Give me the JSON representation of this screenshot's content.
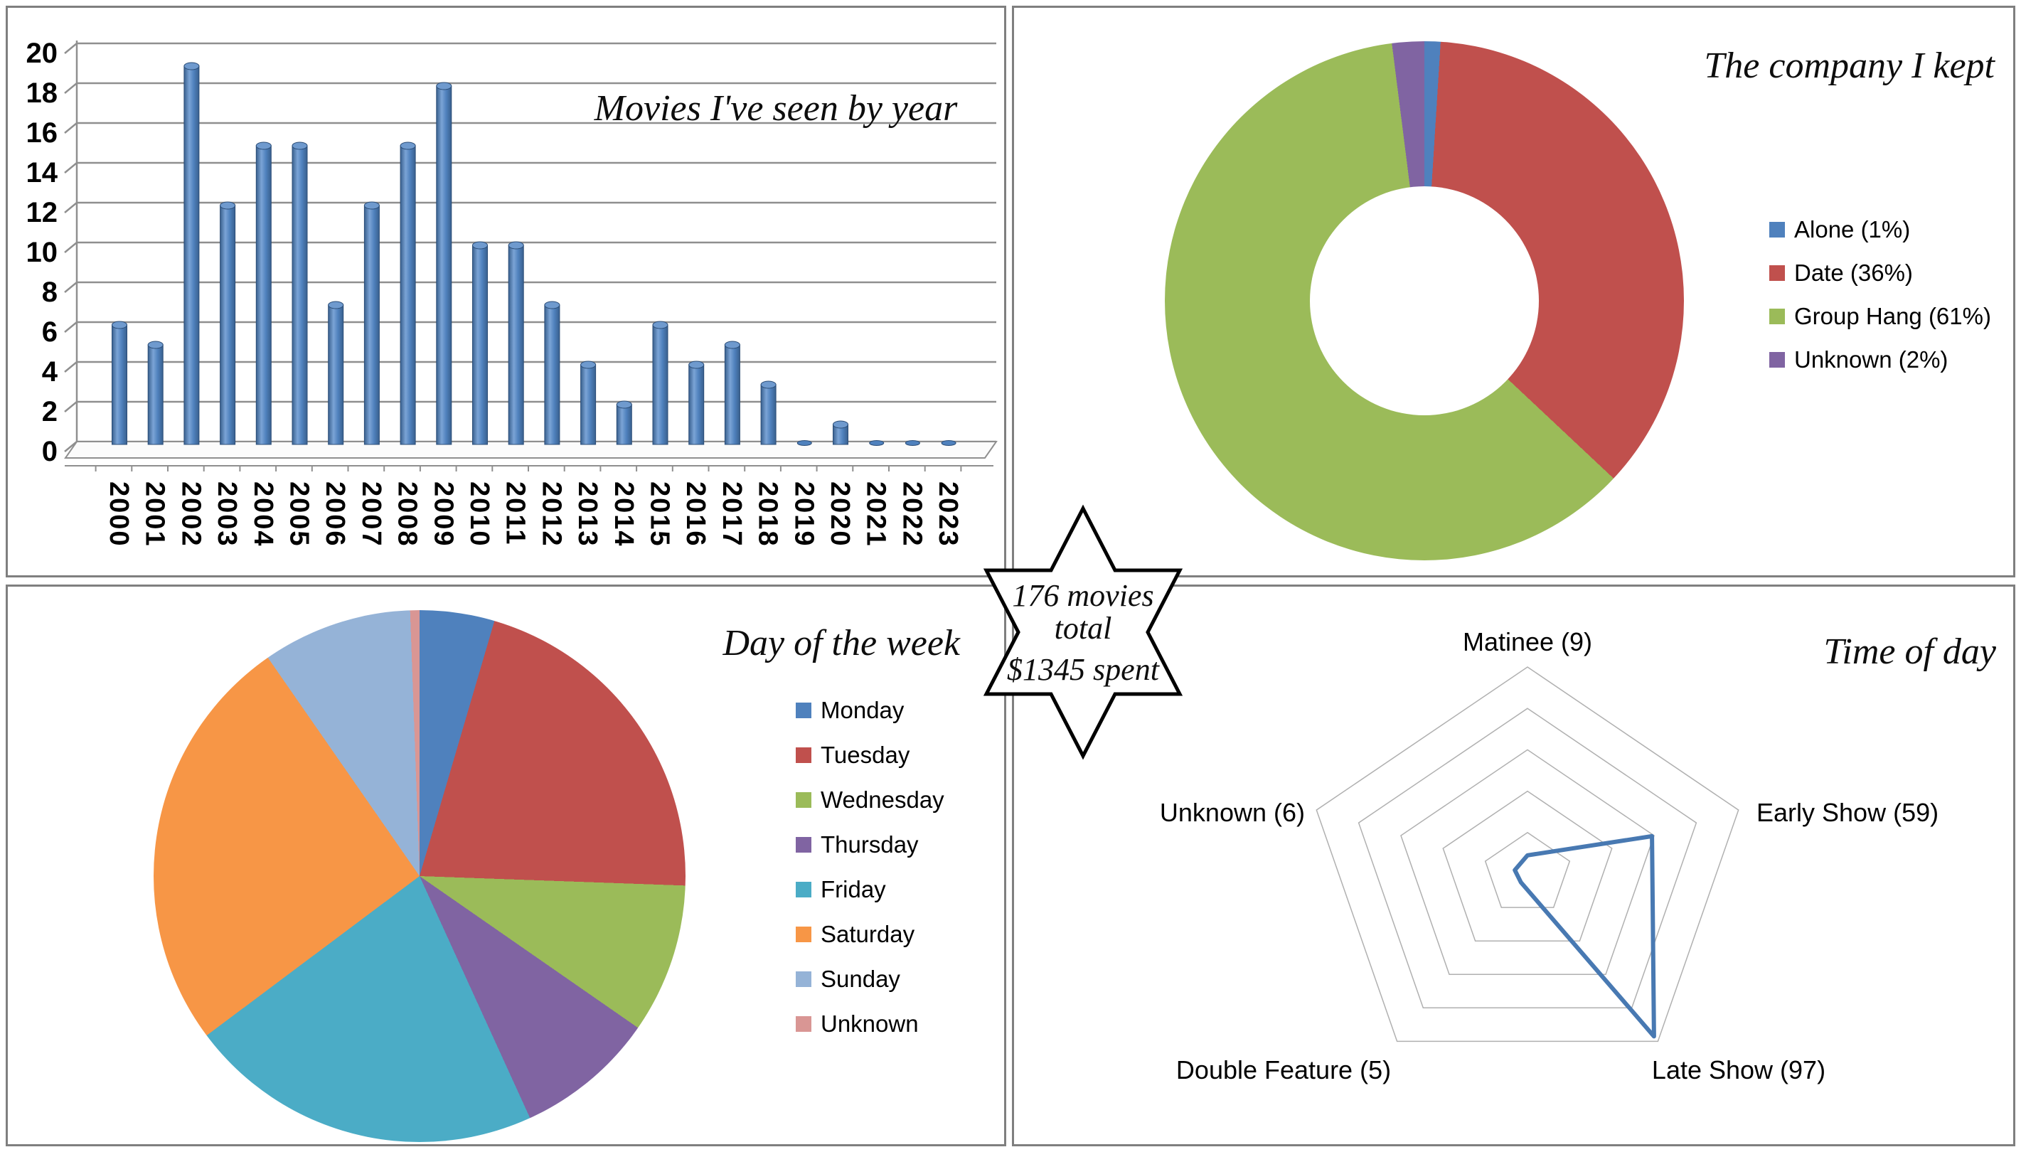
{
  "star": {
    "line1": "176 movies",
    "line2": "total",
    "line3": "$1345 spent"
  },
  "palette": {
    "blue": "#4F81BD",
    "red": "#C0504D",
    "green": "#9BBB59",
    "purple": "#8064A2",
    "teal": "#4BACC6",
    "orange": "#F79646",
    "light_blue": "#95B3D7",
    "pink": "#D99694",
    "grid_gray": "#8f8f8f",
    "panel_border": "#7f7f7f"
  },
  "chart_data": [
    {
      "type": "bar",
      "title": "Movies I've seen by year",
      "categories": [
        "2000",
        "2001",
        "2002",
        "2003",
        "2004",
        "2005",
        "2006",
        "2007",
        "2008",
        "2009",
        "2010",
        "2011",
        "2012",
        "2013",
        "2014",
        "2015",
        "2016",
        "2017",
        "2018",
        "2019",
        "2020",
        "2021",
        "2022",
        "2023"
      ],
      "values": [
        6,
        5,
        19,
        12,
        15,
        15,
        7,
        12,
        15,
        18,
        10,
        10,
        7,
        4,
        2,
        6,
        4,
        5,
        3,
        0,
        1,
        0,
        0,
        0
      ],
      "xlabel": "",
      "ylabel": "",
      "ylim": [
        0,
        20
      ],
      "yticks": [
        0,
        2,
        4,
        6,
        8,
        10,
        12,
        14,
        16,
        18,
        20
      ],
      "grid": "on",
      "bar_color": "#4F81BD",
      "bar_style": "3d-cylinder"
    },
    {
      "type": "pie",
      "subtype": "donut",
      "title": "The company I kept",
      "labels": [
        "Alone (1%)",
        "Date (36%)",
        "Group Hang (61%)",
        "Unknown (2%)"
      ],
      "values": [
        1,
        36,
        61,
        2
      ],
      "colors": [
        "#4F81BD",
        "#C0504D",
        "#9BBB59",
        "#8064A2"
      ],
      "start_angle": 0,
      "legend_position": "right"
    },
    {
      "type": "pie",
      "title": "Day of the week",
      "labels": [
        "Monday",
        "Tuesday",
        "Wednesday",
        "Thursday",
        "Friday",
        "Saturday",
        "Sunday",
        "Unknown"
      ],
      "values": [
        8,
        37,
        16,
        15,
        38,
        45,
        16,
        1
      ],
      "colors": [
        "#4F81BD",
        "#C0504D",
        "#9BBB59",
        "#8064A2",
        "#4BACC6",
        "#F79646",
        "#95B3D7",
        "#D99694"
      ],
      "start_angle": 0,
      "legend_position": "right"
    },
    {
      "type": "radar",
      "title": "Time of day",
      "categories": [
        "Matinee (9)",
        "Early Show (59)",
        "Late Show (97)",
        "Double Feature (5)",
        "Unknown (6)"
      ],
      "values": [
        9,
        59,
        97,
        5,
        6
      ],
      "max": 100,
      "rings": 5,
      "line_color": "#4879B2",
      "grid_color": "#b0b0b0"
    }
  ]
}
